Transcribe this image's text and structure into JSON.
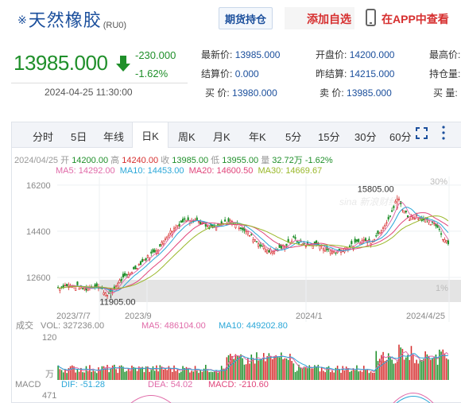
{
  "header": {
    "title_mark": "※",
    "title": "天然橡胶",
    "code": "(RU0)",
    "positions_button": "期货持仓",
    "favorite_button": "添加自选",
    "app_button": "在APP中查看"
  },
  "quote": {
    "price": "13985.000",
    "change": "-230.000",
    "change_pct": "-1.62%",
    "time": "2024-04-25 11:30:00",
    "fields": [
      {
        "label": "最新价:",
        "value": "13985.000"
      },
      {
        "label": "开盘价:",
        "value": "14200.000"
      },
      {
        "label": "最高价:",
        "value": ""
      },
      {
        "label": "结算价:",
        "value": "0.000"
      },
      {
        "label": "昨结算:",
        "value": "14215.000"
      },
      {
        "label": "持仓量:",
        "value": ""
      },
      {
        "label": "买  价:",
        "value": "13980.000"
      },
      {
        "label": "卖  价:",
        "value": "13985.000"
      },
      {
        "label": "买  量:",
        "value": ""
      }
    ]
  },
  "tabs": [
    "分时",
    "5日",
    "年线",
    "日K",
    "周K",
    "月K",
    "年K",
    "5分",
    "15分",
    "30分",
    "60分"
  ],
  "active_tab": "日K",
  "info": {
    "date": "2024/04/25",
    "open_label": "开",
    "open": "14200.00",
    "high_label": "高",
    "high": "14240.00",
    "close_label": "收",
    "close": "13985.00",
    "low_label": "低",
    "low": "13955.00",
    "vol_label": "量",
    "vol": "32.72万",
    "pct": "-1.62%",
    "ma5": "MA5: 14292.00",
    "ma10": "MA10: 14453.00",
    "ma20": "MA20: 14600.50",
    "ma30": "MA30: 14669.67"
  },
  "volume_info": {
    "label": "成交",
    "vol": "VOL: 327236.00",
    "ma5": "MA5: 486104.00",
    "ma10": "MA10: 449202.80"
  },
  "macd_info": {
    "label": "MACD",
    "dif": "DIF: -51.28",
    "dea": "DEA: 54.02",
    "macd": "MACD: -210.60"
  },
  "colors": {
    "up": "#d62f2f",
    "down": "#1f8f2a",
    "ma5": "#e06aa8",
    "ma10": "#2aa7d8",
    "ma20": "#e0447a",
    "ma30": "#9ab82a",
    "brand": "#1b4f9c"
  },
  "chart_data": {
    "type": "candlestick",
    "y_ticks": [
      "16200",
      "14400",
      "12600"
    ],
    "right_ticks": [
      "30%",
      "1%"
    ],
    "x_ticks": [
      "2023/7/7",
      "2023/9",
      "2024/1",
      "2024/4/25"
    ],
    "annotations": {
      "max_label": "15805.00",
      "max_value": 15805,
      "min_label": "11905.00",
      "min_value": 11905
    },
    "ylim": [
      11700,
      16350
    ],
    "close_path": [
      [
        0,
        12200
      ],
      [
        5,
        12300
      ],
      [
        10,
        12250
      ],
      [
        16,
        12150
      ],
      [
        22,
        12300
      ],
      [
        27,
        12000
      ],
      [
        30,
        11905
      ],
      [
        34,
        12400
      ],
      [
        40,
        12700
      ],
      [
        46,
        13100
      ],
      [
        52,
        13450
      ],
      [
        58,
        13800
      ],
      [
        62,
        14250
      ],
      [
        66,
        14500
      ],
      [
        70,
        14750
      ],
      [
        74,
        14900
      ],
      [
        78,
        14850
      ],
      [
        82,
        14700
      ],
      [
        86,
        14500
      ],
      [
        90,
        14550
      ],
      [
        94,
        14700
      ],
      [
        98,
        14800
      ],
      [
        102,
        14650
      ],
      [
        106,
        14450
      ],
      [
        110,
        14200
      ],
      [
        114,
        13950
      ],
      [
        118,
        13700
      ],
      [
        122,
        13600
      ],
      [
        126,
        13700
      ],
      [
        130,
        13900
      ],
      [
        134,
        14100
      ],
      [
        138,
        13950
      ],
      [
        142,
        13850
      ],
      [
        146,
        13900
      ],
      [
        150,
        13800
      ],
      [
        154,
        13650
      ],
      [
        158,
        13600
      ],
      [
        162,
        13700
      ],
      [
        166,
        13800
      ],
      [
        170,
        13950
      ],
      [
        174,
        14050
      ],
      [
        178,
        14000
      ],
      [
        182,
        14300
      ],
      [
        186,
        14700
      ],
      [
        190,
        15100
      ],
      [
        193,
        15805
      ],
      [
        196,
        15300
      ],
      [
        200,
        14900
      ],
      [
        204,
        15000
      ],
      [
        208,
        14850
      ],
      [
        212,
        14700
      ],
      [
        216,
        14600
      ],
      [
        219,
        14150
      ],
      [
        222,
        13985
      ]
    ],
    "volume_ylim": [
      0,
      120
    ],
    "volume_ticks": [
      "120",
      "万"
    ],
    "macd_ticks": [
      "471"
    ]
  }
}
